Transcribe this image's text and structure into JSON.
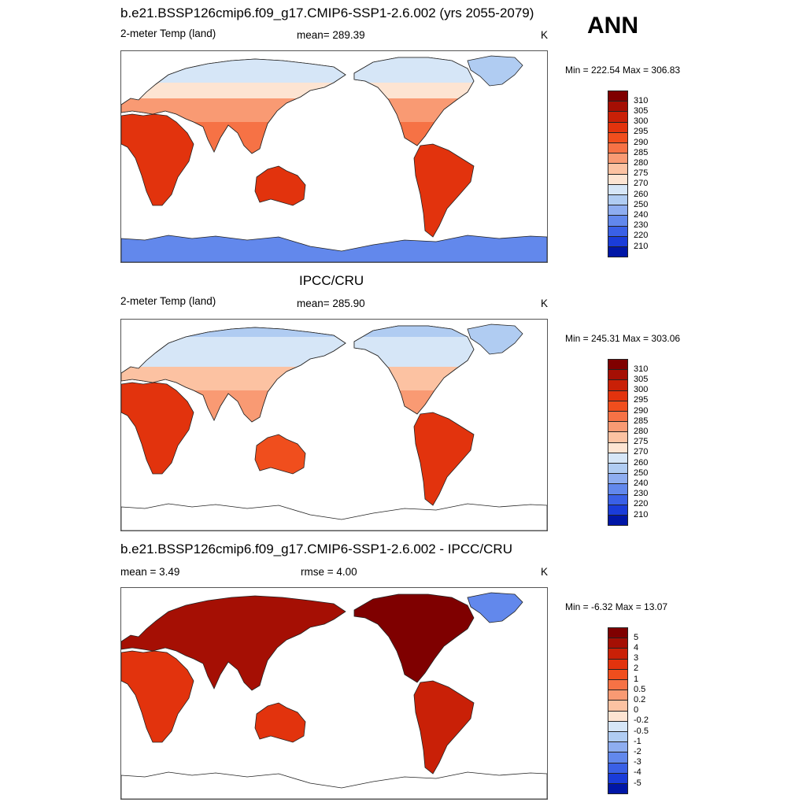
{
  "season": "ANN",
  "panels": [
    {
      "title": "b.e21.BSSP126cmip6.f09_g17.CMIP6-SSP1-2.6.002 (yrs 2055-2079)",
      "left_label": "2-meter Temp (land)",
      "center_label": "mean= 289.39",
      "units": "K",
      "minmax": "Min = 222.54 Max = 306.83",
      "colorbar": {
        "labels": [
          "310",
          "305",
          "300",
          "295",
          "290",
          "285",
          "280",
          "275",
          "270",
          "260",
          "250",
          "240",
          "230",
          "220",
          "210"
        ],
        "colors": [
          "#7f0000",
          "#a50f04",
          "#c92007",
          "#e2330d",
          "#f04e1d",
          "#f67245",
          "#f99a73",
          "#fcc2a2",
          "#fde4d2",
          "#d6e6f7",
          "#b0ccf2",
          "#8eadf0",
          "#6288ec",
          "#3a60e6",
          "#1a3cd9",
          "#0016a6"
        ]
      },
      "map": {
        "kind": "absolute",
        "continents": [
          {
            "name": "Europe and Asia",
            "value": 275
          },
          {
            "name": "Africa",
            "value": 299
          },
          {
            "name": "Australia",
            "value": 296
          },
          {
            "name": "North America",
            "value": 279
          },
          {
            "name": "South America",
            "value": 299
          },
          {
            "name": "Greenland",
            "value": 257
          },
          {
            "name": "Antarctica",
            "value": 238
          }
        ]
      }
    },
    {
      "title": "IPCC/CRU",
      "left_label": "2-meter Temp (land)",
      "center_label": "mean= 285.90",
      "units": "K",
      "minmax": "Min = 245.31 Max = 303.06",
      "colorbar": {
        "labels": [
          "310",
          "305",
          "300",
          "295",
          "290",
          "285",
          "280",
          "275",
          "270",
          "260",
          "250",
          "240",
          "230",
          "220",
          "210"
        ],
        "colors": [
          "#7f0000",
          "#a50f04",
          "#c92007",
          "#e2330d",
          "#f04e1d",
          "#f67245",
          "#f99a73",
          "#fcc2a2",
          "#fde4d2",
          "#d6e6f7",
          "#b0ccf2",
          "#8eadf0",
          "#6288ec",
          "#3a60e6",
          "#1a3cd9",
          "#0016a6"
        ]
      },
      "map": {
        "kind": "absolute",
        "continents": [
          {
            "name": "Europe and Asia",
            "value": 270
          },
          {
            "name": "Africa",
            "value": 297
          },
          {
            "name": "Australia",
            "value": 294
          },
          {
            "name": "North America",
            "value": 276
          },
          {
            "name": "South America",
            "value": 297
          },
          {
            "name": "Greenland",
            "value": 256
          },
          {
            "name": "Antarctica",
            "value": null
          }
        ]
      }
    },
    {
      "title": "b.e21.BSSP126cmip6.f09_g17.CMIP6-SSP1-2.6.002 - IPCC/CRU",
      "left_label": "mean =   3.49",
      "center_label": "rmse =   4.00",
      "units": "K",
      "minmax": "Min =  -6.32 Max =  13.07",
      "colorbar": {
        "labels": [
          "5",
          "4",
          "3",
          "2",
          "1",
          "0.5",
          "0.2",
          "0",
          "-0.2",
          "-0.5",
          "-1",
          "-2",
          "-3",
          "-4",
          "-5"
        ],
        "colors": [
          "#7f0000",
          "#a50f04",
          "#c92007",
          "#e2330d",
          "#f04e1d",
          "#f67245",
          "#f99a73",
          "#fcc2a2",
          "#fde4d2",
          "#d6e6f7",
          "#b0ccf2",
          "#8eadf0",
          "#6288ec",
          "#3a60e6",
          "#1a3cd9",
          "#0016a6"
        ]
      },
      "map": {
        "kind": "difference",
        "continents": [
          {
            "name": "Europe and Asia",
            "value": 4.5
          },
          {
            "name": "Africa",
            "value": 2.5
          },
          {
            "name": "Australia",
            "value": 2.5
          },
          {
            "name": "North America",
            "value": 5.5
          },
          {
            "name": "South America",
            "value": 3.5
          },
          {
            "name": "Greenland",
            "value": -3
          },
          {
            "name": "Antarctica",
            "value": null
          }
        ]
      }
    }
  ]
}
